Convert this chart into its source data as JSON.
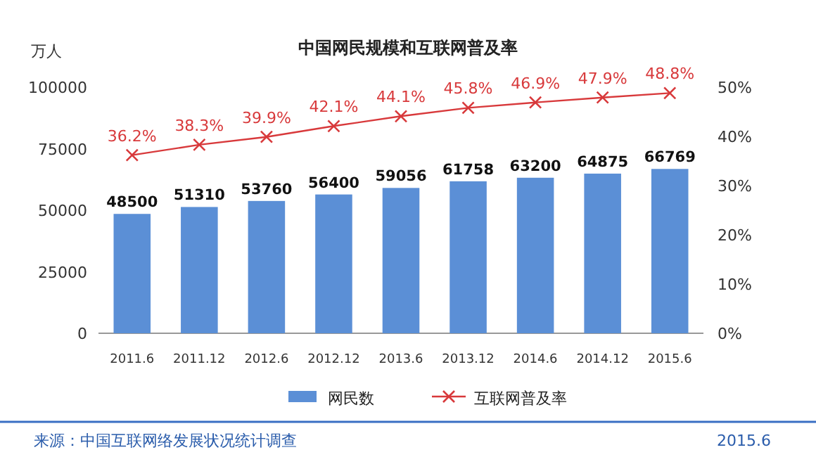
{
  "chart_data": {
    "type": "bar",
    "title": "中国网民规模和互联网普及率",
    "ylabel": "万人",
    "categories": [
      "2011.6",
      "2011.12",
      "2012.6",
      "2012.12",
      "2013.6",
      "2013.12",
      "2014.6",
      "2014.12",
      "2015.6"
    ],
    "series": [
      {
        "name": "网民数",
        "color": "#5b8fd6",
        "values": [
          48500,
          51310,
          53760,
          56400,
          59056,
          61758,
          63200,
          64875,
          66769
        ],
        "value_labels": [
          "48500",
          "51310",
          "53760",
          "56400",
          "59056",
          "61758",
          "63200",
          "64875",
          "66769"
        ]
      },
      {
        "name": "互联网普及率",
        "type": "line",
        "axis": "y2",
        "color": "#d8393b",
        "marker": "cross",
        "line_style": "solid",
        "values": [
          36.2,
          38.3,
          39.9,
          42.1,
          44.1,
          45.8,
          46.9,
          47.9,
          48.8
        ],
        "value_labels": [
          "36.2%",
          "38.3%",
          "39.9%",
          "42.1%",
          "44.1%",
          "45.8%",
          "46.9%",
          "47.9%",
          "48.8%"
        ]
      }
    ],
    "ylim": [
      0,
      100000
    ],
    "yticks": [
      0,
      25000,
      50000,
      75000,
      100000
    ],
    "y2lim": [
      0,
      50
    ],
    "y2ticks": [
      {
        "value": 0,
        "label": "0%"
      },
      {
        "value": 10,
        "label": "10%"
      },
      {
        "value": 20,
        "label": "20%"
      },
      {
        "value": 30,
        "label": "30%"
      },
      {
        "value": 40,
        "label": "40%"
      },
      {
        "value": 50,
        "label": "50%"
      }
    ],
    "grid": false,
    "legend": "bottom",
    "annotations": [
      "来源：中国互联网络发展状况统计调查",
      "2015.6"
    ]
  }
}
